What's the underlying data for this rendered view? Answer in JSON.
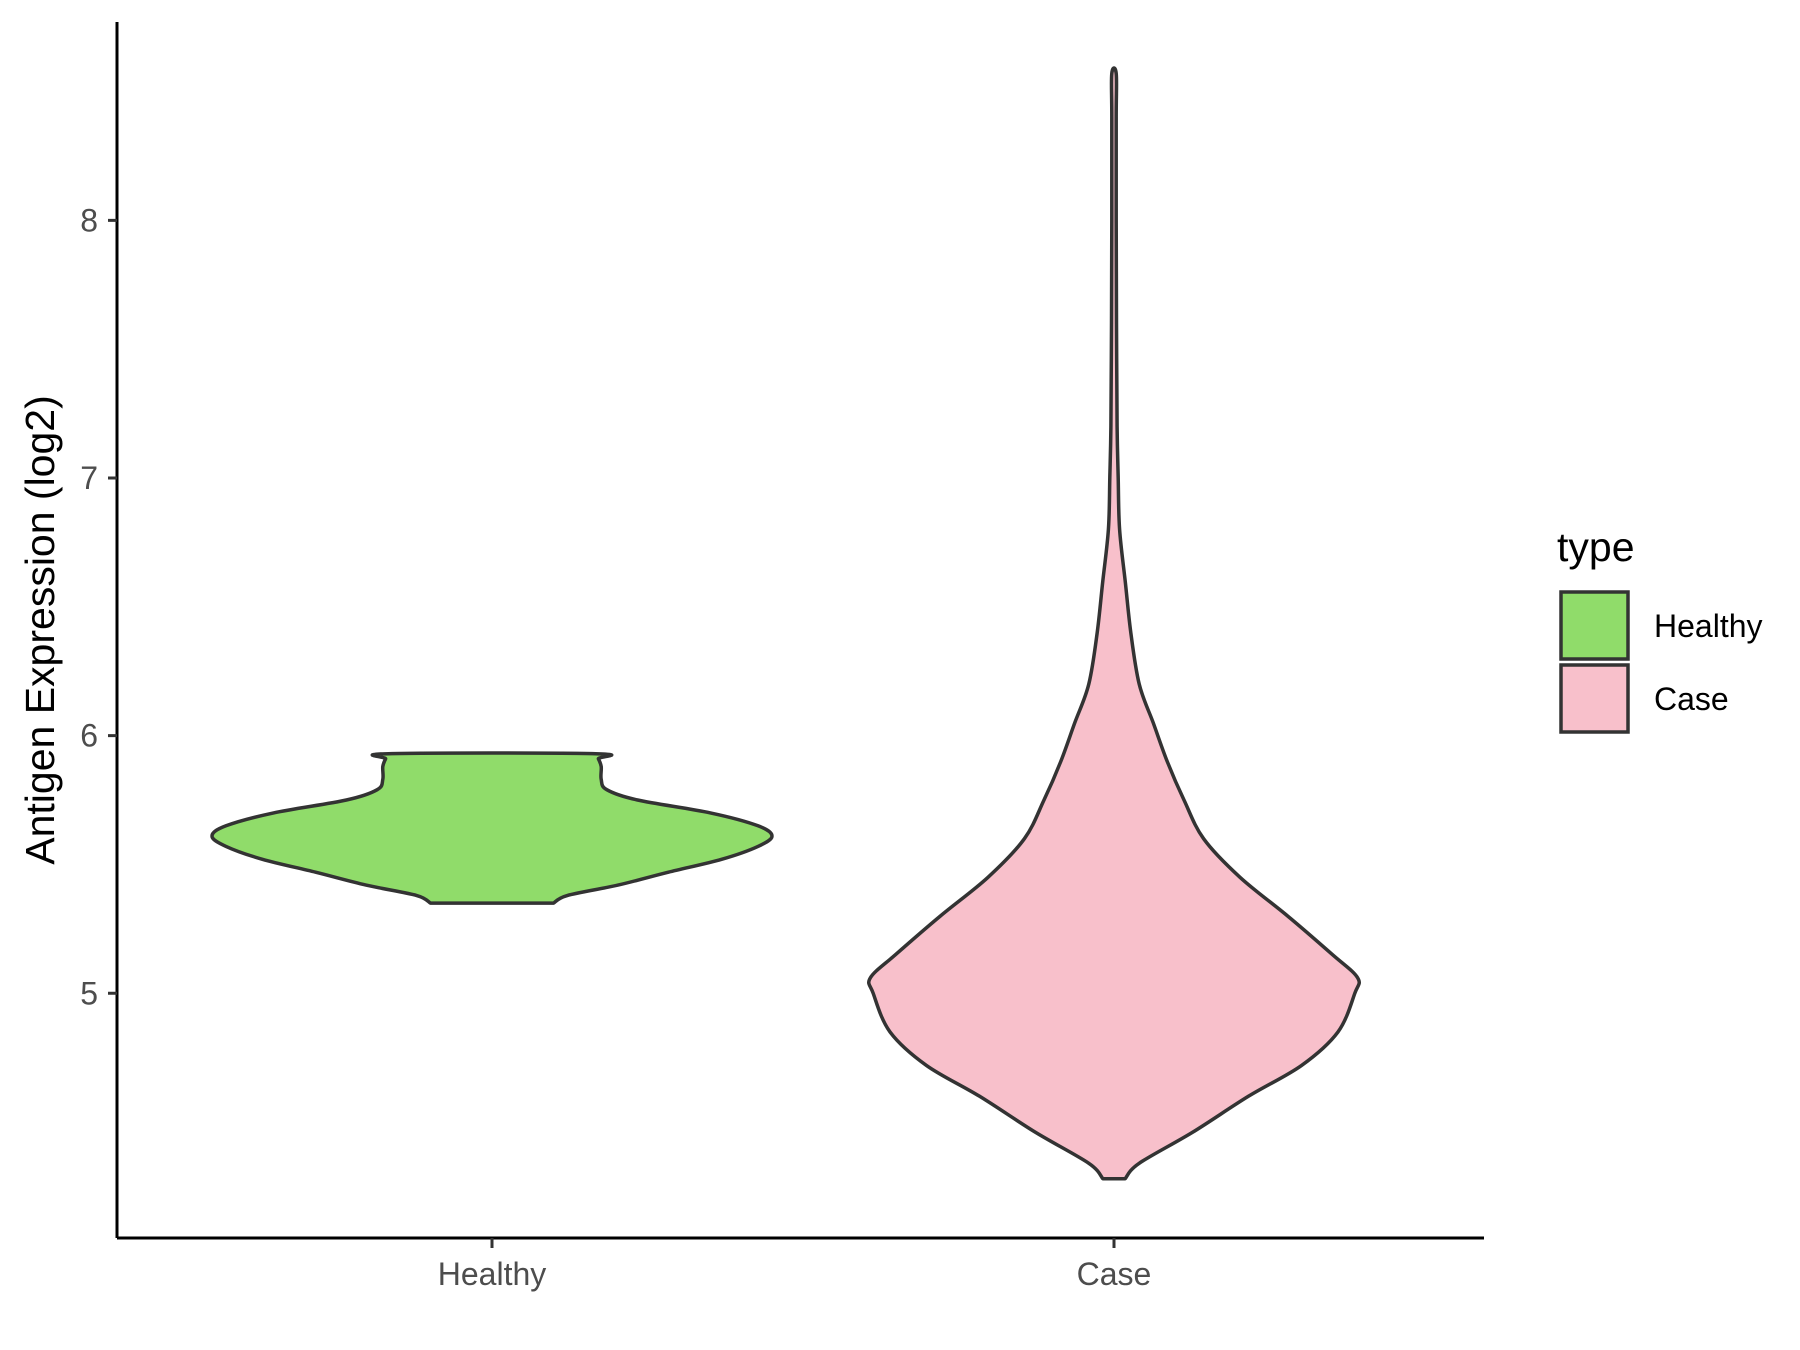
{
  "chart_data": {
    "type": "violin",
    "title": "",
    "xlabel": "",
    "ylabel": "Antigen Expression (log2)",
    "categories": [
      "Healthy",
      "Case"
    ],
    "y_ticks": [
      "5",
      "6",
      "7",
      "8"
    ],
    "ylim": [
      4.05,
      8.77
    ],
    "grid": false,
    "legend": {
      "title": "type",
      "placement": "right",
      "entries": [
        {
          "label": "Healthy",
          "color": "#90dc6a"
        },
        {
          "label": "Case",
          "color": "#f8c0cb"
        }
      ]
    },
    "series": [
      {
        "name": "Healthy",
        "color": "#90dc6a",
        "min": 5.35,
        "max": 5.93,
        "density_profile": [
          [
            5.35,
            0.22
          ],
          [
            5.38,
            0.27
          ],
          [
            5.42,
            0.45
          ],
          [
            5.47,
            0.63
          ],
          [
            5.52,
            0.82
          ],
          [
            5.57,
            0.95
          ],
          [
            5.61,
            1.0
          ],
          [
            5.65,
            0.95
          ],
          [
            5.7,
            0.78
          ],
          [
            5.75,
            0.52
          ],
          [
            5.79,
            0.41
          ],
          [
            5.83,
            0.39
          ],
          [
            5.88,
            0.39
          ],
          [
            5.91,
            0.38
          ],
          [
            5.93,
            0.37
          ]
        ]
      },
      {
        "name": "Case",
        "color": "#f8c0cb",
        "min": 4.28,
        "max": 8.57,
        "density_profile": [
          [
            4.28,
            0.04
          ],
          [
            4.34,
            0.09
          ],
          [
            4.46,
            0.28
          ],
          [
            4.6,
            0.48
          ],
          [
            4.72,
            0.67
          ],
          [
            4.85,
            0.8
          ],
          [
            5.0,
            0.86
          ],
          [
            5.06,
            0.87
          ],
          [
            5.15,
            0.78
          ],
          [
            5.3,
            0.62
          ],
          [
            5.45,
            0.45
          ],
          [
            5.6,
            0.32
          ],
          [
            5.75,
            0.25
          ],
          [
            5.9,
            0.19
          ],
          [
            6.05,
            0.14
          ],
          [
            6.2,
            0.09
          ],
          [
            6.4,
            0.06
          ],
          [
            6.6,
            0.04
          ],
          [
            6.8,
            0.02
          ],
          [
            7.0,
            0.015
          ],
          [
            7.2,
            0.011
          ],
          [
            7.6,
            0.009
          ],
          [
            8.0,
            0.008
          ],
          [
            8.4,
            0.008
          ],
          [
            8.57,
            0.008
          ]
        ]
      }
    ]
  }
}
